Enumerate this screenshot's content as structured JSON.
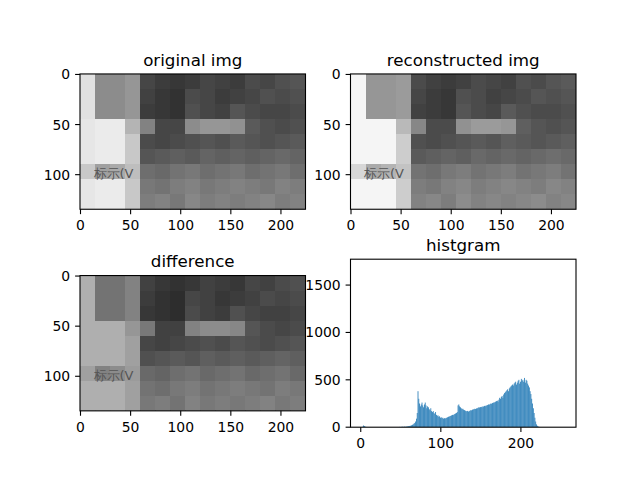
{
  "chart_data": [
    {
      "type": "image",
      "title": "original img",
      "annotation": "标示(V",
      "xlim": [
        -0.5,
        224.5
      ],
      "ylim": [
        134.5,
        -0.5
      ],
      "xticks": [
        0,
        50,
        100,
        150,
        200
      ],
      "yticks": [
        0,
        50,
        100
      ],
      "pixels": [
        [
          225,
          140,
          140,
          150,
          70,
          60,
          55,
          60,
          70,
          65,
          60,
          75,
          70,
          80,
          85
        ],
        [
          225,
          140,
          140,
          150,
          65,
          55,
          50,
          75,
          70,
          60,
          65,
          70,
          80,
          75,
          80
        ],
        [
          225,
          140,
          140,
          150,
          60,
          55,
          50,
          80,
          70,
          65,
          85,
          75,
          70,
          70,
          75
        ],
        [
          230,
          235,
          235,
          180,
          130,
          70,
          70,
          140,
          150,
          150,
          145,
          90,
          80,
          75,
          80
        ],
        [
          230,
          235,
          235,
          200,
          75,
          70,
          75,
          80,
          85,
          80,
          90,
          85,
          80,
          85,
          90
        ],
        [
          230,
          235,
          235,
          200,
          85,
          90,
          95,
          90,
          100,
          95,
          100,
          95,
          100,
          105,
          100
        ],
        [
          200,
          160,
          170,
          190,
          110,
          105,
          115,
          120,
          110,
          115,
          120,
          110,
          115,
          120,
          110
        ],
        [
          230,
          235,
          235,
          200,
          120,
          115,
          125,
          130,
          120,
          125,
          130,
          125,
          120,
          130,
          125
        ],
        [
          230,
          235,
          235,
          200,
          125,
          130,
          120,
          135,
          125,
          130,
          125,
          130,
          135,
          125,
          130
        ]
      ]
    },
    {
      "type": "image",
      "title": "reconstructed img",
      "annotation": "标示(V",
      "xlim": [
        -0.5,
        224.5
      ],
      "ylim": [
        134.5,
        -0.5
      ],
      "xticks": [
        0,
        50,
        100,
        150,
        200
      ],
      "yticks": [
        0,
        50,
        100
      ],
      "pixels": [
        [
          245,
          150,
          150,
          155,
          75,
          65,
          60,
          65,
          75,
          70,
          65,
          80,
          75,
          85,
          90
        ],
        [
          245,
          150,
          150,
          155,
          70,
          60,
          55,
          80,
          75,
          65,
          70,
          75,
          85,
          80,
          85
        ],
        [
          245,
          150,
          150,
          155,
          65,
          60,
          55,
          85,
          75,
          70,
          90,
          80,
          75,
          75,
          80
        ],
        [
          245,
          245,
          245,
          185,
          135,
          75,
          75,
          145,
          155,
          155,
          150,
          95,
          85,
          80,
          85
        ],
        [
          245,
          245,
          245,
          205,
          80,
          75,
          80,
          85,
          90,
          85,
          95,
          90,
          85,
          90,
          95
        ],
        [
          245,
          245,
          245,
          205,
          90,
          95,
          100,
          95,
          105,
          100,
          105,
          100,
          105,
          110,
          105
        ],
        [
          215,
          170,
          180,
          195,
          115,
          110,
          120,
          125,
          115,
          120,
          125,
          115,
          120,
          125,
          115
        ],
        [
          245,
          245,
          245,
          205,
          125,
          120,
          130,
          135,
          125,
          130,
          135,
          130,
          125,
          135,
          130
        ],
        [
          245,
          245,
          245,
          205,
          130,
          135,
          125,
          140,
          130,
          135,
          130,
          135,
          140,
          130,
          135
        ]
      ]
    },
    {
      "type": "image",
      "title": "difference",
      "annotation": "标示(V",
      "xlim": [
        -0.5,
        224.5
      ],
      "ylim": [
        134.5,
        -0.5
      ],
      "xticks": [
        0,
        50,
        100,
        150,
        200
      ],
      "yticks": [
        0,
        50,
        100
      ],
      "pixels": [
        [
          175,
          115,
          115,
          130,
          65,
          55,
          50,
          55,
          65,
          60,
          55,
          70,
          65,
          75,
          80
        ],
        [
          175,
          115,
          115,
          130,
          60,
          50,
          45,
          70,
          65,
          55,
          60,
          65,
          75,
          70,
          75
        ],
        [
          175,
          115,
          115,
          130,
          55,
          50,
          45,
          75,
          65,
          60,
          80,
          70,
          65,
          65,
          70
        ],
        [
          175,
          175,
          175,
          150,
          120,
          65,
          65,
          130,
          140,
          140,
          135,
          85,
          75,
          70,
          75
        ],
        [
          175,
          175,
          175,
          160,
          70,
          65,
          70,
          75,
          80,
          75,
          85,
          80,
          75,
          80,
          85
        ],
        [
          175,
          175,
          175,
          160,
          80,
          85,
          90,
          85,
          95,
          90,
          95,
          90,
          95,
          100,
          95
        ],
        [
          160,
          130,
          140,
          155,
          105,
          100,
          110,
          115,
          105,
          110,
          115,
          105,
          110,
          115,
          105
        ],
        [
          175,
          175,
          175,
          160,
          115,
          110,
          120,
          125,
          115,
          120,
          125,
          120,
          115,
          125,
          120
        ],
        [
          175,
          175,
          175,
          160,
          120,
          125,
          115,
          130,
          120,
          125,
          120,
          125,
          130,
          120,
          125
        ]
      ]
    },
    {
      "type": "histogram",
      "title": "histgram",
      "color": "#1f77b4",
      "xlim": [
        -12.8,
        268.8
      ],
      "ylim": [
        0,
        1773
      ],
      "xticks": [
        0,
        100,
        200
      ],
      "yticks": [
        0,
        500,
        1000,
        1500
      ],
      "bins": [
        0,
        1,
        2,
        3,
        4,
        5,
        6,
        7,
        8,
        9,
        10,
        11,
        12,
        13,
        14,
        15,
        16,
        17,
        18,
        19,
        20,
        21,
        22,
        23,
        24,
        25,
        26,
        27,
        28,
        29,
        30,
        31,
        32,
        33,
        34,
        35,
        36,
        37,
        38,
        39,
        40,
        41,
        42,
        43,
        44,
        45,
        46,
        47,
        48,
        49,
        50,
        51,
        52,
        53,
        54,
        55,
        56,
        57,
        58,
        59,
        60,
        61,
        62,
        63,
        64,
        65,
        66,
        67,
        68,
        69,
        70,
        71,
        72,
        73,
        74,
        75,
        76,
        77,
        78,
        79,
        80,
        81,
        82,
        83,
        84,
        85,
        86,
        87,
        88,
        89,
        90,
        91,
        92,
        93,
        94,
        95,
        96,
        97,
        98,
        99,
        100,
        101,
        102,
        103,
        104,
        105,
        106,
        107,
        108,
        109,
        110,
        111,
        112,
        113,
        114,
        115,
        116,
        117,
        118,
        119,
        120,
        121,
        122,
        123,
        124,
        125,
        126,
        127,
        128,
        129,
        130,
        131,
        132,
        133,
        134,
        135,
        136,
        137,
        138,
        139,
        140,
        141,
        142,
        143,
        144,
        145,
        146,
        147,
        148,
        149,
        150,
        151,
        152,
        153,
        154,
        155,
        156,
        157,
        158,
        159,
        160,
        161,
        162,
        163,
        164,
        165,
        166,
        167,
        168,
        169,
        170,
        171,
        172,
        173,
        174,
        175,
        176,
        177,
        178,
        179,
        180,
        181,
        182,
        183,
        184,
        185,
        186,
        187,
        188,
        189,
        190,
        191,
        192,
        193,
        194,
        195,
        196,
        197,
        198,
        199,
        200,
        201,
        202,
        203,
        204,
        205,
        206,
        207,
        208,
        209,
        210,
        211,
        212,
        213,
        214,
        215,
        216,
        217,
        218,
        219,
        220,
        221,
        222,
        223,
        224,
        225,
        226,
        227,
        228,
        229,
        230,
        231,
        232,
        233,
        234,
        235,
        236,
        237,
        238,
        239,
        240,
        241,
        242,
        243,
        244,
        245,
        246,
        247,
        248,
        249,
        250,
        251,
        252,
        253,
        254,
        255,
        256
      ],
      "values": [
        0,
        0,
        5,
        18,
        12,
        6,
        3,
        2,
        0,
        0,
        0,
        0,
        0,
        0,
        0,
        0,
        0,
        0,
        0,
        0,
        0,
        0,
        0,
        0,
        0,
        0,
        0,
        0,
        0,
        0,
        0,
        0,
        0,
        0,
        0,
        0,
        0,
        0,
        0,
        0,
        0,
        0,
        0,
        0,
        0,
        0,
        0,
        2,
        3,
        2,
        3,
        4,
        5,
        3,
        6,
        4,
        5,
        7,
        8,
        10,
        12,
        14,
        16,
        20,
        25,
        30,
        38,
        45,
        60,
        90,
        150,
        380,
        300,
        250,
        220,
        240,
        260,
        230,
        210,
        240,
        260,
        230,
        200,
        220,
        210,
        190,
        180,
        200,
        170,
        160,
        170,
        150,
        140,
        160,
        130,
        120,
        125,
        110,
        115,
        100,
        105,
        95,
        100,
        90,
        95,
        92,
        98,
        100,
        105,
        110,
        112,
        118,
        120,
        125,
        130,
        128,
        135,
        140,
        145,
        150,
        160,
        230,
        240,
        220,
        210,
        200,
        190,
        195,
        185,
        180,
        175,
        170,
        168,
        172,
        165,
        170,
        175,
        180,
        178,
        185,
        188,
        190,
        195,
        192,
        198,
        200,
        205,
        210,
        208,
        212,
        215,
        210,
        220,
        218,
        225,
        222,
        230,
        228,
        235,
        240,
        238,
        245,
        250,
        248,
        255,
        260,
        258,
        265,
        270,
        275,
        280,
        270,
        290,
        310,
        300,
        320,
        330,
        310,
        345,
        360,
        370,
        380,
        390,
        400,
        380,
        410,
        420,
        430,
        440,
        450,
        440,
        460,
        470,
        480,
        450,
        470,
        490,
        500,
        460,
        480,
        510,
        490,
        500,
        480,
        520,
        470,
        500,
        490,
        460,
        440,
        420,
        380,
        350,
        300,
        250,
        200,
        150,
        100,
        60,
        30,
        15,
        8,
        4,
        2,
        1,
        0,
        0,
        0,
        0,
        0,
        0,
        0,
        0,
        0,
        0,
        0,
        0,
        0,
        0,
        0,
        0,
        0,
        0,
        0,
        0,
        0,
        0,
        0,
        0,
        0,
        0,
        0,
        0,
        0,
        0,
        0
      ]
    }
  ]
}
